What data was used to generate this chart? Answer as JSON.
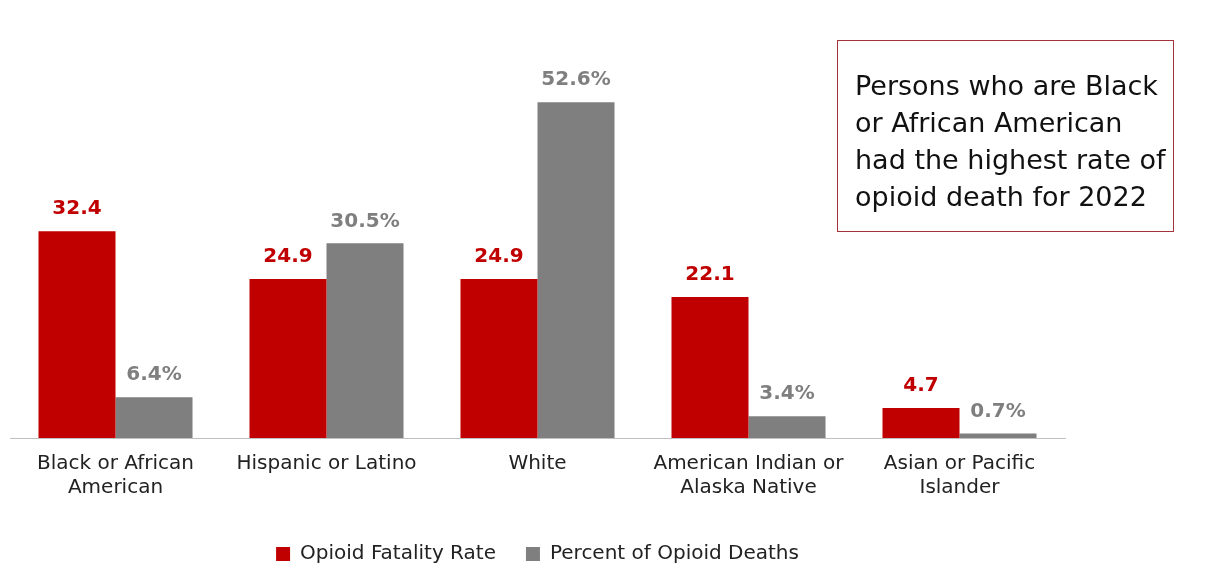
{
  "chart_data": {
    "type": "bar",
    "categories": [
      "Black or African American",
      "Hispanic or Latino",
      "White",
      "American Indian or Alaska Native",
      "Asian or Pacific Islander"
    ],
    "series": [
      {
        "name": "Opioid Fatality Rate",
        "color": "#c00000",
        "values": [
          32.4,
          24.9,
          24.9,
          22.1,
          4.7
        ],
        "value_labels": [
          "32.4",
          "24.9",
          "24.9",
          "22.1",
          "4.7"
        ]
      },
      {
        "name": "Percent of Opioid Deaths",
        "color": "#7f7f7f",
        "values": [
          6.4,
          30.5,
          52.6,
          3.4,
          0.7
        ],
        "value_labels": [
          "6.4%",
          "30.5%",
          "52.6%",
          "3.4%",
          "0.7%"
        ]
      }
    ],
    "legend": "bottom",
    "grid": false,
    "tick_labels": "x",
    "annotations": [
      "Persons who are Black or African American had the highest rate of opioid death for 2022"
    ]
  }
}
